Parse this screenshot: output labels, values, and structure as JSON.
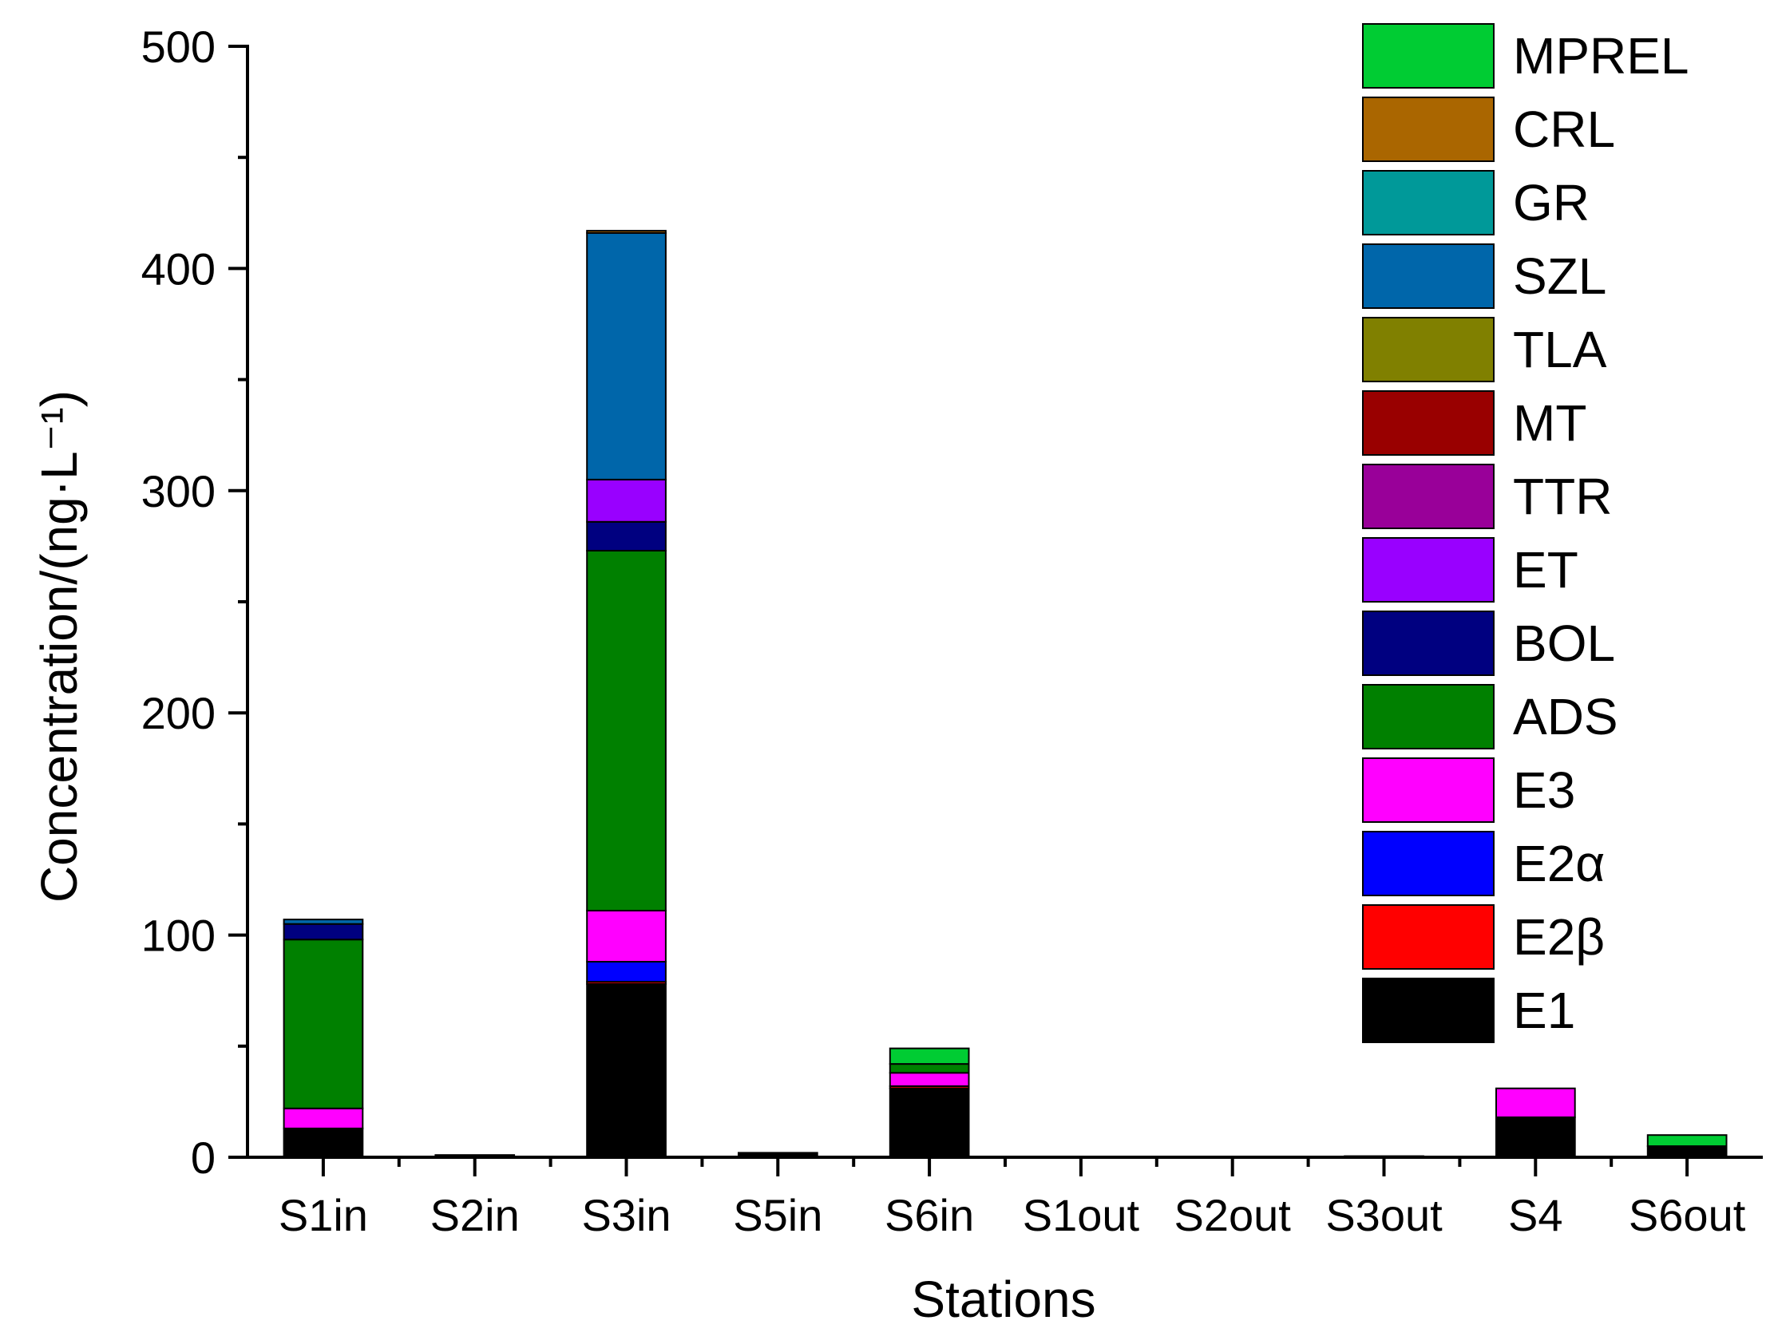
{
  "chart_data": {
    "type": "bar",
    "stacked": true,
    "xlabel": "Stations",
    "ylabel": "Concentration/(ng·L⁻¹)",
    "ylim": [
      0,
      500
    ],
    "yticks": [
      0,
      100,
      200,
      300,
      400,
      500
    ],
    "categories": [
      "S1in",
      "S2in",
      "S3in",
      "S5in",
      "S6in",
      "S1out",
      "S2out",
      "S3out",
      "S4",
      "S6out"
    ],
    "legend_position": "top-right",
    "grid": false,
    "series": [
      {
        "name": "E1",
        "color": "#000000",
        "values": [
          13,
          1,
          78,
          2,
          31,
          0,
          0,
          0.5,
          18,
          5
        ]
      },
      {
        "name": "E2β",
        "color": "#ff0000",
        "values": [
          0,
          0,
          1,
          0,
          1,
          0,
          0,
          0,
          0,
          0
        ]
      },
      {
        "name": "E2α",
        "color": "#0000ff",
        "values": [
          0,
          0,
          9,
          0,
          0,
          0,
          0,
          0,
          0,
          0
        ]
      },
      {
        "name": "E3",
        "color": "#ff00ff",
        "values": [
          9,
          0,
          23,
          0,
          6,
          0,
          0,
          0,
          13,
          0
        ]
      },
      {
        "name": "ADS",
        "color": "#008000",
        "values": [
          76,
          0,
          162,
          0,
          4,
          0,
          0,
          0,
          0,
          0
        ]
      },
      {
        "name": "BOL",
        "color": "#000080",
        "values": [
          7,
          0,
          13,
          0,
          0,
          0,
          0,
          0,
          0,
          0
        ]
      },
      {
        "name": "ET",
        "color": "#9900ff",
        "values": [
          0,
          0,
          19,
          0,
          0,
          0,
          0,
          0,
          0,
          0
        ]
      },
      {
        "name": "TTR",
        "color": "#990099",
        "values": [
          0,
          0,
          0,
          0,
          0,
          0,
          0,
          0,
          0,
          0
        ]
      },
      {
        "name": "MT",
        "color": "#990000",
        "values": [
          0,
          0,
          0,
          0,
          0,
          0,
          0,
          0,
          0,
          0
        ]
      },
      {
        "name": "TLA",
        "color": "#808000",
        "values": [
          0,
          0,
          0,
          0,
          0,
          0,
          0,
          0,
          0,
          0
        ]
      },
      {
        "name": "SZL",
        "color": "#0066aa",
        "values": [
          2,
          0,
          111,
          0,
          0,
          0,
          0,
          0,
          0,
          0
        ]
      },
      {
        "name": "GR",
        "color": "#009999",
        "values": [
          0,
          0,
          0,
          0,
          0,
          0,
          0,
          0,
          0,
          0
        ]
      },
      {
        "name": "CRL",
        "color": "#aa6600",
        "values": [
          0,
          0,
          1,
          0,
          0,
          0,
          0,
          0,
          0,
          0
        ]
      },
      {
        "name": "MPREL",
        "color": "#00cc33",
        "values": [
          0,
          0,
          0,
          0,
          7,
          0,
          0,
          0,
          0,
          5
        ]
      }
    ]
  }
}
